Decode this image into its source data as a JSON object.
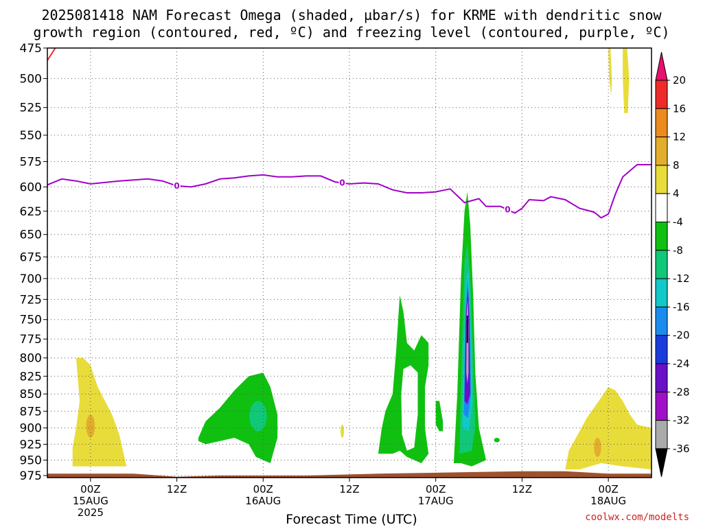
{
  "chart_data": {
    "type": "heatmap",
    "title_line1": "2025081418 NAM Forecast Omega (shaded, µbar/s) for KRME with dendritic snow",
    "title_line2": "growth region (contoured, red, ºC) and freezing level (contoured, purple, ºC)",
    "xlabel": "Forecast Time (UTC)",
    "credit": "coolwx.com/modelts",
    "y_axis": {
      "label_values": [
        "475",
        "500",
        "525",
        "550",
        "575",
        "600",
        "625",
        "650",
        "675",
        "700",
        "725",
        "750",
        "775",
        "800",
        "825",
        "850",
        "875",
        "900",
        "925",
        "950",
        "975"
      ],
      "ylim": [
        980,
        475
      ],
      "scale": "log-pressure"
    },
    "x_axis": {
      "hours_range": [
        -6,
        78
      ],
      "ticks": [
        {
          "hour": 0,
          "label": "00Z",
          "sub": "15AUG",
          "sub2": "2025"
        },
        {
          "hour": 12,
          "label": "12Z",
          "sub": "",
          "sub2": ""
        },
        {
          "hour": 24,
          "label": "00Z",
          "sub": "16AUG",
          "sub2": ""
        },
        {
          "hour": 36,
          "label": "12Z",
          "sub": "",
          "sub2": ""
        },
        {
          "hour": 48,
          "label": "00Z",
          "sub": "17AUG",
          "sub2": ""
        },
        {
          "hour": 60,
          "label": "12Z",
          "sub": "",
          "sub2": ""
        },
        {
          "hour": 72,
          "label": "00Z",
          "sub": "18AUG",
          "sub2": ""
        }
      ]
    },
    "colorbar": {
      "levels": [
        "20",
        "16",
        "12",
        "8",
        "4",
        "-4",
        "-8",
        "-12",
        "-16",
        "-20",
        "-24",
        "-28",
        "-32",
        "-36"
      ],
      "colors": [
        "#e8106e",
        "#ee2a2a",
        "#ec8a1e",
        "#e2ae2c",
        "#e8dc3a",
        "#ffffff",
        "#10c010",
        "#10c878",
        "#12c8c8",
        "#1a8cf0",
        "#1a3cdc",
        "#6a10c8",
        "#a010c8",
        "#aaaaaa",
        "#000000"
      ]
    },
    "freezing_level": {
      "color": "#a000c8",
      "label": "0",
      "points": [
        [
          -6,
          598
        ],
        [
          -4,
          592
        ],
        [
          -2,
          594
        ],
        [
          0,
          597
        ],
        [
          4,
          594
        ],
        [
          8,
          592
        ],
        [
          10,
          594
        ],
        [
          12,
          599
        ],
        [
          14,
          600
        ],
        [
          16,
          597
        ],
        [
          18,
          592
        ],
        [
          20,
          591
        ],
        [
          22,
          589
        ],
        [
          24,
          588
        ],
        [
          26,
          590
        ],
        [
          28,
          590
        ],
        [
          30,
          589
        ],
        [
          32,
          589
        ],
        [
          34,
          595
        ],
        [
          36,
          597
        ],
        [
          38,
          596
        ],
        [
          40,
          597
        ],
        [
          42,
          603
        ],
        [
          44,
          606
        ],
        [
          46,
          606
        ],
        [
          48,
          605
        ],
        [
          50,
          602
        ],
        [
          52,
          616
        ],
        [
          54,
          612
        ],
        [
          55,
          620
        ],
        [
          57,
          620
        ],
        [
          59,
          627
        ],
        [
          60,
          622
        ],
        [
          61,
          613
        ],
        [
          63,
          614
        ],
        [
          64,
          610
        ],
        [
          66,
          613
        ],
        [
          68,
          622
        ],
        [
          70,
          626
        ],
        [
          71,
          632
        ],
        [
          72,
          628
        ],
        [
          73,
          607
        ],
        [
          74,
          590
        ],
        [
          76,
          578
        ],
        [
          78,
          578
        ]
      ],
      "label_hours": [
        12,
        35,
        58
      ]
    },
    "dgz_color": "#ee2a2a",
    "ground_color": "#a0522d"
  }
}
